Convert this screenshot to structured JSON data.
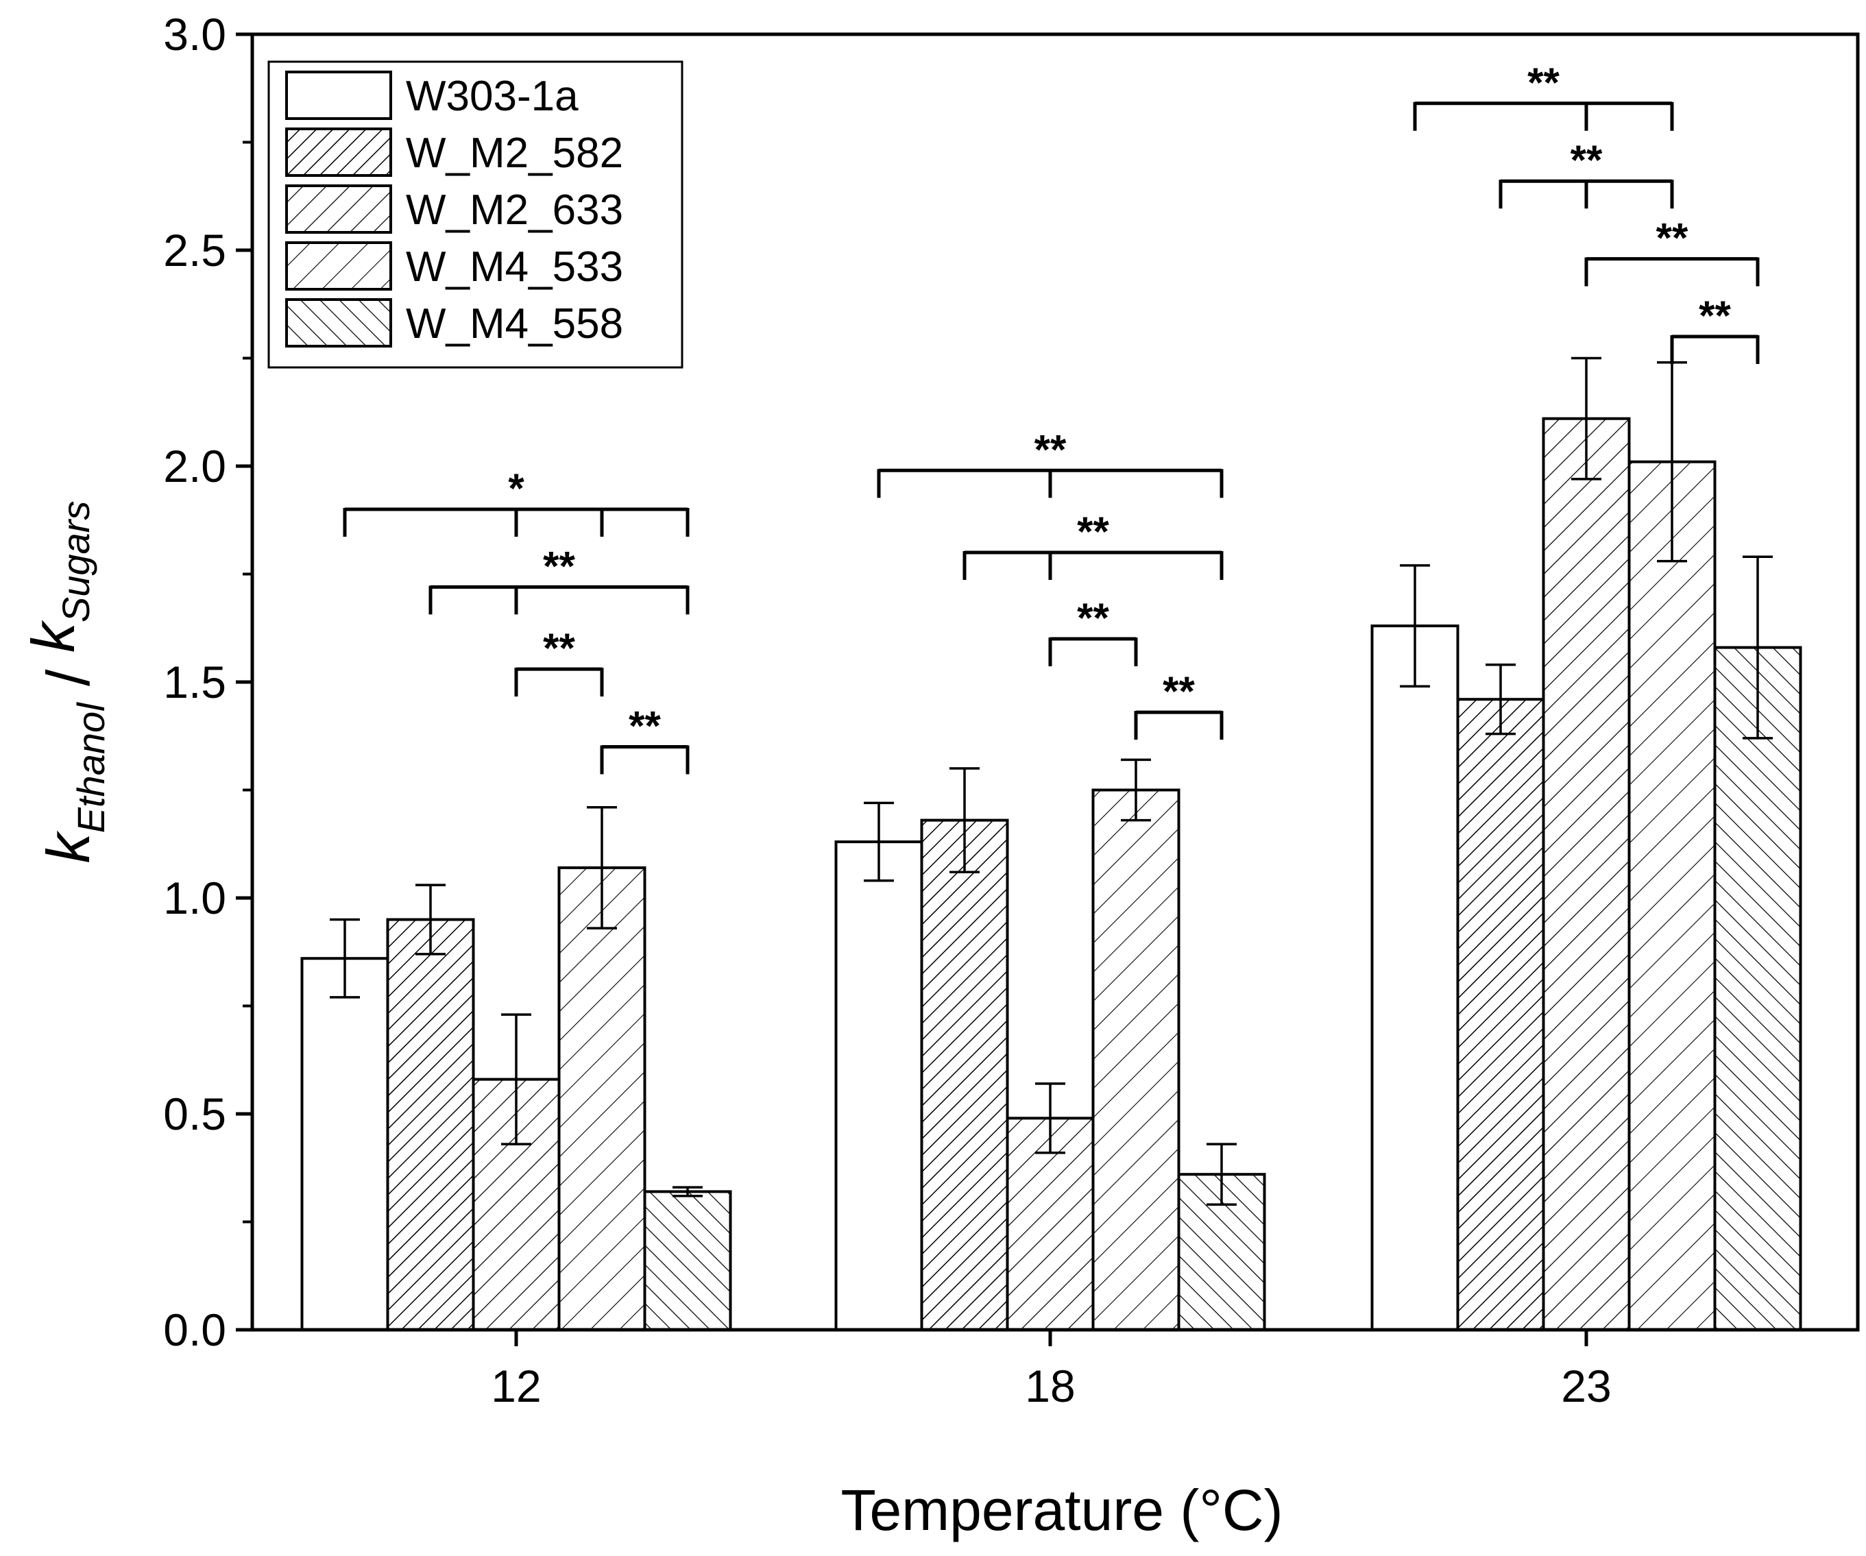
{
  "chart_data": {
    "type": "bar",
    "xlabel": "Temperature (°C)",
    "ylabel": {
      "parts": [
        {
          "text": "k",
          "role": "base"
        },
        {
          "text": "Ethanol",
          "role": "sub"
        },
        {
          "text": " / ",
          "role": "base"
        },
        {
          "text": "k",
          "role": "base"
        },
        {
          "text": "Sugars",
          "role": "sub"
        }
      ]
    },
    "ylim": [
      0,
      3.0
    ],
    "yticks": [
      "0.0",
      "0.5",
      "1.0",
      "1.5",
      "2.0",
      "2.5",
      "3.0"
    ],
    "categories": [
      "12",
      "18",
      "23"
    ],
    "legend_position": "top-left",
    "series": [
      {
        "name": "W303-1a",
        "pattern": "none",
        "values": [
          0.86,
          1.13,
          1.63
        ],
        "errors": [
          0.09,
          0.09,
          0.14
        ]
      },
      {
        "name": "W_M2_582",
        "pattern": "dense-forward",
        "values": [
          0.95,
          1.18,
          1.46
        ],
        "errors": [
          0.08,
          0.12,
          0.08
        ]
      },
      {
        "name": "W_M2_633",
        "pattern": "forward",
        "values": [
          0.58,
          0.49,
          2.11
        ],
        "errors": [
          0.15,
          0.08,
          0.14
        ]
      },
      {
        "name": "W_M4_533",
        "pattern": "sparse-forward",
        "values": [
          1.07,
          1.25,
          2.01
        ],
        "errors": [
          0.14,
          0.07,
          0.23
        ]
      },
      {
        "name": "W_M4_558",
        "pattern": "backward",
        "values": [
          0.32,
          0.36,
          1.58
        ],
        "errors": [
          0.01,
          0.07,
          0.21
        ]
      }
    ],
    "significance": [
      {
        "category": 0,
        "from": 0,
        "to": 4,
        "mid_ticks": [
          2,
          3
        ],
        "label": "*",
        "y": 1.9
      },
      {
        "category": 0,
        "from": 1,
        "to": 4,
        "mid_ticks": [
          2
        ],
        "label": "**",
        "y": 1.72
      },
      {
        "category": 0,
        "from": 2,
        "to": 3,
        "mid_ticks": [],
        "label": "**",
        "y": 1.53
      },
      {
        "category": 0,
        "from": 3,
        "to": 4,
        "mid_ticks": [],
        "label": "**",
        "y": 1.35
      },
      {
        "category": 1,
        "from": 0,
        "to": 4,
        "mid_ticks": [
          2
        ],
        "label": "**",
        "y": 1.99
      },
      {
        "category": 1,
        "from": 1,
        "to": 4,
        "mid_ticks": [
          2
        ],
        "label": "**",
        "y": 1.8
      },
      {
        "category": 1,
        "from": 2,
        "to": 3,
        "mid_ticks": [],
        "label": "**",
        "y": 1.6
      },
      {
        "category": 1,
        "from": 3,
        "to": 4,
        "mid_ticks": [],
        "label": "**",
        "y": 1.43
      },
      {
        "category": 2,
        "from": 0,
        "to": 3,
        "mid_ticks": [
          2
        ],
        "label": "**",
        "y": 2.84
      },
      {
        "category": 2,
        "from": 1,
        "to": 3,
        "mid_ticks": [
          2
        ],
        "label": "**",
        "y": 2.66
      },
      {
        "category": 2,
        "from": 2,
        "to": 4,
        "mid_ticks": [],
        "label": "**",
        "y": 2.48
      },
      {
        "category": 2,
        "from": 3,
        "to": 4,
        "mid_ticks": [],
        "label": "**",
        "y": 2.3
      }
    ]
  }
}
